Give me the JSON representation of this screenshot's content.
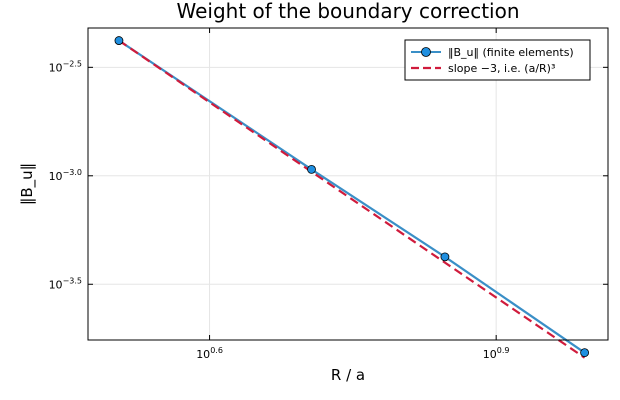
{
  "chart_data": {
    "type": "line",
    "title": "Weight of the boundary correction",
    "xlabel": "R / a",
    "ylabel": "‖B_u‖",
    "x_scale": "log10",
    "y_scale": "log10",
    "xlim": [
      2.97,
      10.4
    ],
    "ylim": [
      0.000175,
      0.0048
    ],
    "x_ticks": [
      {
        "value": 3.981,
        "base": "10",
        "exp": "0.6"
      },
      {
        "value": 7.943,
        "base": "10",
        "exp": "0.9"
      }
    ],
    "y_ticks": [
      {
        "value": 0.003162,
        "base": "10",
        "exp": "−2.5"
      },
      {
        "value": 0.001,
        "base": "10",
        "exp": "−3.0"
      },
      {
        "value": 0.0003162,
        "base": "10",
        "exp": "−3.5"
      }
    ],
    "grid": true,
    "legend_position": "top-right",
    "series": [
      {
        "name": "‖B_u‖ (finite elements)",
        "style": "line-with-markers",
        "color": "#3a8fc7",
        "marker_color": "#1f8fe0",
        "x": [
          3.2,
          5.09,
          7.02,
          9.83
        ],
        "y": [
          0.0042,
          0.00107,
          0.000423,
          0.000153
        ]
      },
      {
        "name": "slope −3, i.e. (a/R)³",
        "style": "dashed",
        "color": "#d01b3c",
        "x": [
          3.2,
          9.83
        ],
        "y": [
          0.0042,
          0.000145
        ]
      }
    ]
  }
}
